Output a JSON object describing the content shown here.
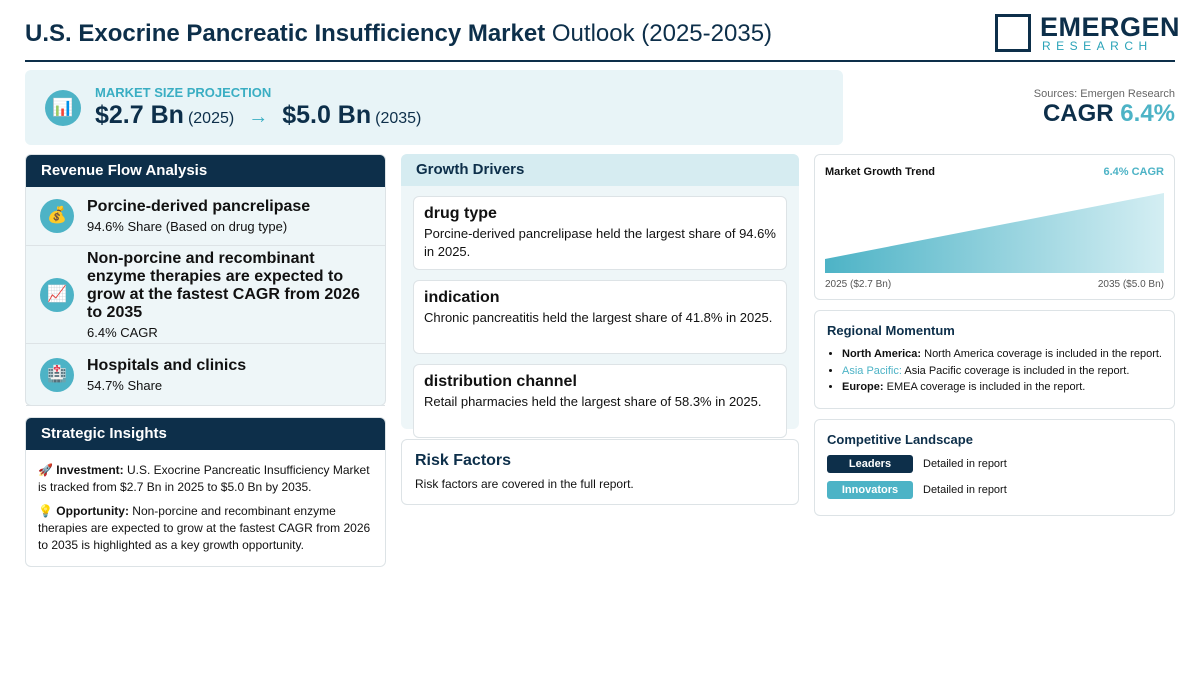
{
  "header": {
    "title_bold": "U.S. Exocrine Pancreatic Insufficiency Market",
    "title_rest": "Outlook (2025-2035)",
    "logo": {
      "name": "EMERGEN",
      "sub": "RESEARCH"
    }
  },
  "market_size": {
    "icon": "📊",
    "label": "MARKET SIZE PROJECTION",
    "start_value": "$2.7 Bn",
    "start_year": "(2025)",
    "arrow": "→",
    "end_value": "$5.0 Bn",
    "end_year": "(2035)"
  },
  "cagr": {
    "source": "Sources: Emergen Research",
    "label": "CAGR",
    "value": "6.4%"
  },
  "revenue_flow": {
    "title": "Revenue Flow Analysis",
    "items": [
      {
        "icon": "💰",
        "title": "Porcine-derived pancrelipase",
        "detail": "94.6% Share (Based on drug type)"
      },
      {
        "icon": "📈",
        "title": "Non-porcine and recombinant enzyme therapies are expected to grow at the fastest CAGR from 2026 to 2035",
        "detail": "6.4% CAGR"
      },
      {
        "icon": "🏥",
        "title": "Hospitals and clinics",
        "detail": "54.7% Share"
      }
    ]
  },
  "insights": {
    "title": "Strategic Insights",
    "items": [
      {
        "icon": "🚀",
        "label": "Investment:",
        "text": "U.S. Exocrine Pancreatic Insufficiency Market is tracked from $2.7 Bn in 2025 to $5.0 Bn by 2035."
      },
      {
        "icon": "💡",
        "label": "Opportunity:",
        "text": "Non-porcine and recombinant enzyme therapies are expected to grow at the fastest CAGR from 2026 to 2035 is highlighted as a key growth opportunity."
      }
    ]
  },
  "growth_drivers": {
    "title": "Growth Drivers",
    "items": [
      {
        "title": "drug type",
        "text": "Porcine-derived pancrelipase held the largest share of 94.6% in 2025."
      },
      {
        "title": "indication",
        "text": "Chronic pancreatitis held the largest share of 41.8% in 2025."
      },
      {
        "title": "distribution channel",
        "text": "Retail pharmacies held the largest share of 58.3% in 2025."
      }
    ]
  },
  "risk": {
    "title": "Risk Factors",
    "text": "Risk factors are covered in the full report."
  },
  "trend": {
    "title": "Market Growth Trend",
    "cagr": "6.4% CAGR",
    "values": [
      2.7,
      5.0
    ],
    "start_label": "2025 ($2.7 Bn)",
    "end_label": "2035 ($5.0 Bn)"
  },
  "regional": {
    "title": "Regional Momentum",
    "items": [
      {
        "region": "North America:",
        "text": "North America coverage is included in the report."
      },
      {
        "region": "Asia Pacific:",
        "text": "Asia Pacific coverage is included in the report."
      },
      {
        "region": "Europe:",
        "text": "EMEA coverage is included in the report."
      }
    ]
  },
  "competitive": {
    "title": "Competitive Landscape",
    "items": [
      {
        "badge": "Leaders",
        "text": "Detailed in report"
      },
      {
        "badge": "Innovators",
        "text": "Detailed in report"
      }
    ]
  }
}
